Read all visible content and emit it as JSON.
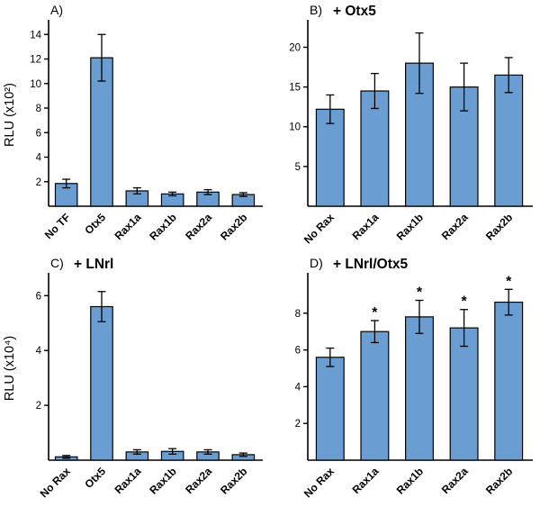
{
  "figure": {
    "background": "#ffffff",
    "bar_fill": "#6A9ED3",
    "bar_stroke": "#000000",
    "axis_color": "#000000"
  },
  "chart_data": [
    {
      "type": "bar",
      "panel_label": "A)",
      "title": "",
      "ylabel": "RLU (x10²)",
      "yticks": [
        2,
        4,
        6,
        8,
        10,
        12,
        14
      ],
      "ylim": [
        0,
        14.9
      ],
      "categories": [
        "No TF",
        "Otx5",
        "Rax1a",
        "Rax1b",
        "Rax2a",
        "Rax2b"
      ],
      "values": [
        1.85,
        12.1,
        1.25,
        1.0,
        1.15,
        0.95
      ],
      "errors": [
        0.35,
        1.9,
        0.25,
        0.15,
        0.2,
        0.15
      ],
      "sig": [
        false,
        false,
        false,
        false,
        false,
        false
      ],
      "grid": false,
      "legend": "none"
    },
    {
      "type": "bar",
      "panel_label": "B)",
      "title": "+ Otx5",
      "ylabel": "",
      "yticks": [
        5,
        10,
        15,
        20
      ],
      "ylim": [
        0,
        23
      ],
      "categories": [
        "No Rax",
        "Rax1a",
        "Rax1b",
        "Rax2a",
        "Rax2b"
      ],
      "values": [
        12.2,
        14.5,
        18.0,
        15.0,
        16.5
      ],
      "errors": [
        1.8,
        2.2,
        3.8,
        3.0,
        2.2
      ],
      "sig": [
        false,
        false,
        false,
        false,
        false
      ],
      "grid": false,
      "legend": "none"
    },
    {
      "type": "bar",
      "panel_label": "C)",
      "title": "+ LNrl",
      "ylabel": "RLU (x10⁴)",
      "yticks": [
        2,
        4,
        6
      ],
      "ylim": [
        0,
        6.7
      ],
      "categories": [
        "No Rax",
        "Otx5",
        "Rax1a",
        "Rax1b",
        "Rax2a",
        "Rax2b"
      ],
      "values": [
        0.12,
        5.6,
        0.3,
        0.32,
        0.3,
        0.2
      ],
      "errors": [
        0.05,
        0.55,
        0.08,
        0.1,
        0.08,
        0.06
      ],
      "sig": [
        false,
        false,
        false,
        false,
        false,
        false
      ],
      "grid": false,
      "legend": "none"
    },
    {
      "type": "bar",
      "panel_label": "D)",
      "title": "+ LNrl/Otx5",
      "ylabel": "",
      "yticks": [
        2,
        4,
        6,
        8
      ],
      "ylim": [
        0,
        10
      ],
      "categories": [
        "No Rax",
        "Rax1a",
        "Rax1b",
        "Rax2a",
        "Rax2b"
      ],
      "values": [
        5.6,
        7.0,
        7.8,
        7.2,
        8.6
      ],
      "errors": [
        0.5,
        0.6,
        0.9,
        1.0,
        0.7
      ],
      "sig": [
        false,
        true,
        true,
        true,
        true
      ],
      "grid": false,
      "legend": "none"
    }
  ]
}
